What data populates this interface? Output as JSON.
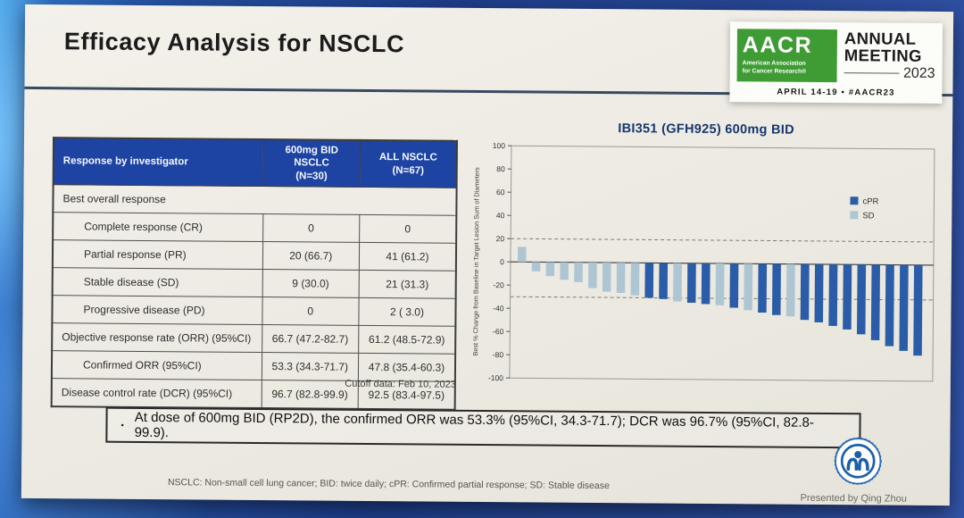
{
  "slide": {
    "title": "Efficacy Analysis for NSCLC",
    "cutoff": "Cutoff data: Feb 10, 2023",
    "bullet": "At dose of 600mg BID (RP2D), the confirmed ORR was 53.3% (95%CI, 34.3-71.7); DCR was 96.7% (95%CI, 82.8-99.9).",
    "footnote": "NSCLC: Non-small cell lung cancer; BID: twice daily; cPR: Confirmed partial response; SD: Stable disease",
    "presented_by": "Presented by Qing Zhou"
  },
  "aacr": {
    "acronym": "AACR",
    "subtext": "American Association\nfor Cancer Research®",
    "line1": "ANNUAL",
    "line2": "MEETING",
    "year": "2023",
    "dates": "APRIL 14-19 • #AACR23",
    "green": "#3f9c35"
  },
  "table": {
    "header": [
      "Response by investigator",
      "600mg BID\nNSCLC\n(N=30)",
      "ALL NSCLC\n(N=67)"
    ],
    "header_bg": "#1e44a3",
    "rows": [
      {
        "label": "Best overall response",
        "span": true,
        "indent": false,
        "c1": "",
        "c2": ""
      },
      {
        "label": "Complete response (CR)",
        "span": false,
        "indent": true,
        "c1": "0",
        "c2": "0"
      },
      {
        "label": "Partial response (PR)",
        "span": false,
        "indent": true,
        "c1": "20 (66.7)",
        "c2": "41 (61.2)"
      },
      {
        "label": "Stable disease (SD)",
        "span": false,
        "indent": true,
        "c1": "9 (30.0)",
        "c2": "21 (31.3)"
      },
      {
        "label": "Progressive disease (PD)",
        "span": false,
        "indent": true,
        "c1": "0",
        "c2": "2 ( 3.0)"
      },
      {
        "label": "Objective response rate (ORR) (95%CI)",
        "span": false,
        "indent": false,
        "c1": "66.7 (47.2-82.7)",
        "c2": "61.2 (48.5-72.9)"
      },
      {
        "label": "Confirmed ORR (95%CI)",
        "span": false,
        "indent": true,
        "c1": "53.3 (34.3-71.7)",
        "c2": "47.8 (35.4-60.3)"
      },
      {
        "label": "Disease control rate (DCR) (95%CI)",
        "span": false,
        "indent": false,
        "c1": "96.7 (82.8-99.9)",
        "c2": "92.5 (83.4-97.5)"
      }
    ]
  },
  "chart_data": {
    "type": "bar",
    "title": "IBI351 (GFH925) 600mg BID",
    "xlabel": "",
    "ylabel": "Best % Change from Baseline in Target Lesion Sum of Diameters",
    "ylim": [
      -100,
      100
    ],
    "yticks": [
      100,
      80,
      60,
      40,
      20,
      0,
      -20,
      -40,
      -60,
      -80,
      -100
    ],
    "reference_lines": [
      20,
      -30
    ],
    "grid": false,
    "legend_position": "inside-right",
    "colors": {
      "cPR": "#2a5ca8",
      "SD": "#aec6d4"
    },
    "legend": [
      {
        "label": "cPR"
      },
      {
        "label": "SD"
      }
    ],
    "bars": [
      {
        "value": 13,
        "group": "SD"
      },
      {
        "value": -8,
        "group": "SD"
      },
      {
        "value": -12,
        "group": "SD"
      },
      {
        "value": -15,
        "group": "SD"
      },
      {
        "value": -17,
        "group": "SD"
      },
      {
        "value": -22,
        "group": "SD"
      },
      {
        "value": -25,
        "group": "SD"
      },
      {
        "value": -26,
        "group": "SD"
      },
      {
        "value": -28,
        "group": "SD"
      },
      {
        "value": -30,
        "group": "cPR"
      },
      {
        "value": -31,
        "group": "cPR"
      },
      {
        "value": -33,
        "group": "SD"
      },
      {
        "value": -34,
        "group": "cPR"
      },
      {
        "value": -35,
        "group": "cPR"
      },
      {
        "value": -36,
        "group": "SD"
      },
      {
        "value": -38,
        "group": "cPR"
      },
      {
        "value": -40,
        "group": "SD"
      },
      {
        "value": -42,
        "group": "cPR"
      },
      {
        "value": -44,
        "group": "cPR"
      },
      {
        "value": -45,
        "group": "SD"
      },
      {
        "value": -48,
        "group": "cPR"
      },
      {
        "value": -50,
        "group": "cPR"
      },
      {
        "value": -53,
        "group": "cPR"
      },
      {
        "value": -56,
        "group": "cPR"
      },
      {
        "value": -60,
        "group": "cPR"
      },
      {
        "value": -65,
        "group": "cPR"
      },
      {
        "value": -70,
        "group": "cPR"
      },
      {
        "value": -74,
        "group": "cPR"
      },
      {
        "value": -78,
        "group": "cPR"
      }
    ]
  }
}
